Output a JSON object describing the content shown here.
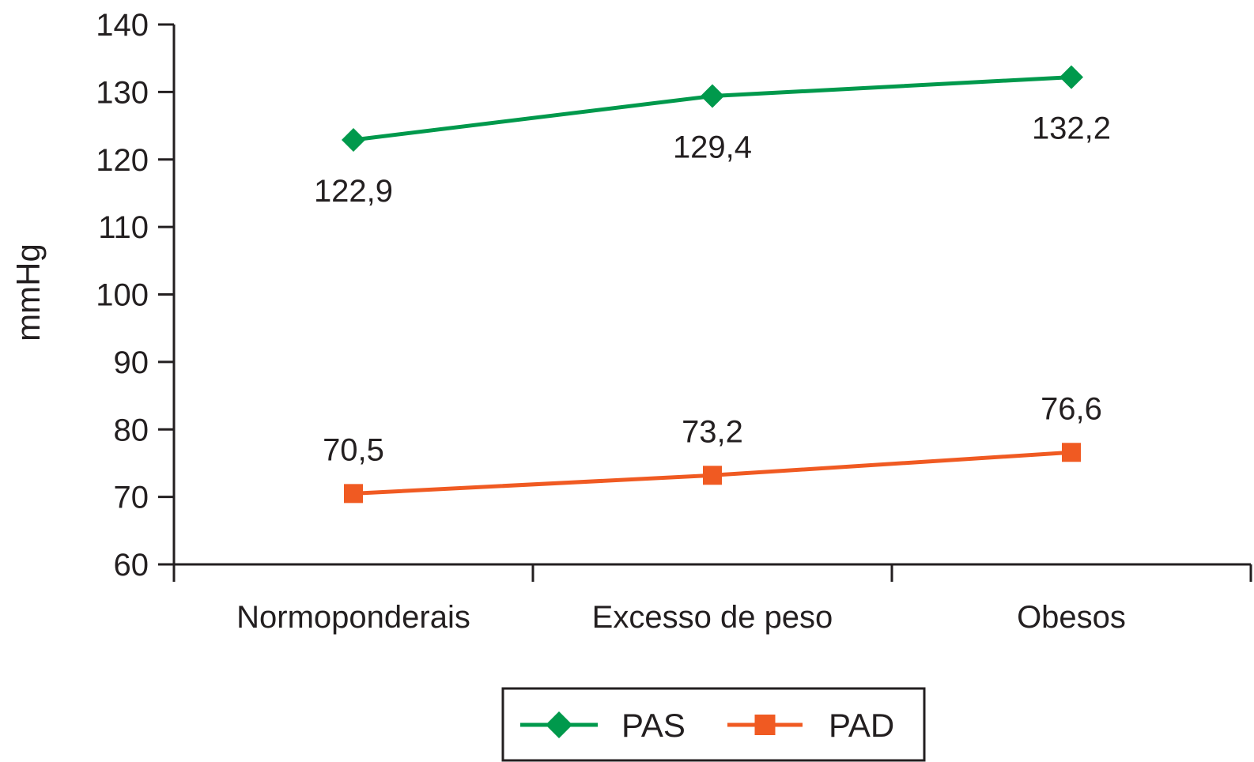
{
  "chart_data": {
    "type": "line",
    "title": "",
    "xlabel": "",
    "ylabel": "mmHg",
    "ylim": [
      60,
      140
    ],
    "yticks": [
      60,
      70,
      80,
      90,
      100,
      110,
      120,
      130,
      140
    ],
    "categories": [
      "Normoponderais",
      "Excesso de peso",
      "Obesos"
    ],
    "grid": false,
    "legend_position": "bottom",
    "series": [
      {
        "name": "PAS",
        "values": [
          122.9,
          129.4,
          132.2
        ],
        "labels": [
          "122,9",
          "129,4",
          "132,2"
        ],
        "color": "#00994c",
        "marker": "diamond",
        "label_position": "below"
      },
      {
        "name": "PAD",
        "values": [
          70.5,
          73.2,
          76.6
        ],
        "labels": [
          "70,5",
          "73,2",
          "76,6"
        ],
        "color": "#f05a22",
        "marker": "square",
        "label_position": "above"
      }
    ]
  }
}
